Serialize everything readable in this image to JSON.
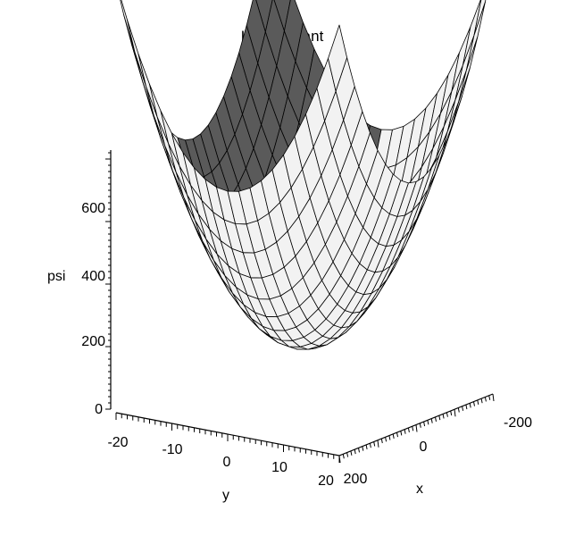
{
  "chart_data": {
    "type": "surface",
    "title": "KD constant",
    "zlabel": "psi",
    "xlabel": "x",
    "ylabel": "y",
    "x_range": [
      -200,
      200
    ],
    "y_range": [
      -20,
      20
    ],
    "z_range": [
      0,
      700
    ],
    "z_ticks": [
      "0",
      "200",
      "400",
      "600"
    ],
    "y_ticks": [
      "-20",
      "-10",
      "0",
      "10",
      "20"
    ],
    "x_ticks": [
      "-200",
      "0",
      "200"
    ],
    "surface": {
      "formula": "psi = 0.0125*x^2 + 1.25*y^2",
      "grid": 20
    },
    "colors": {
      "dark_face": "#5a5a5a",
      "light_face": "#f2f2f2"
    }
  }
}
